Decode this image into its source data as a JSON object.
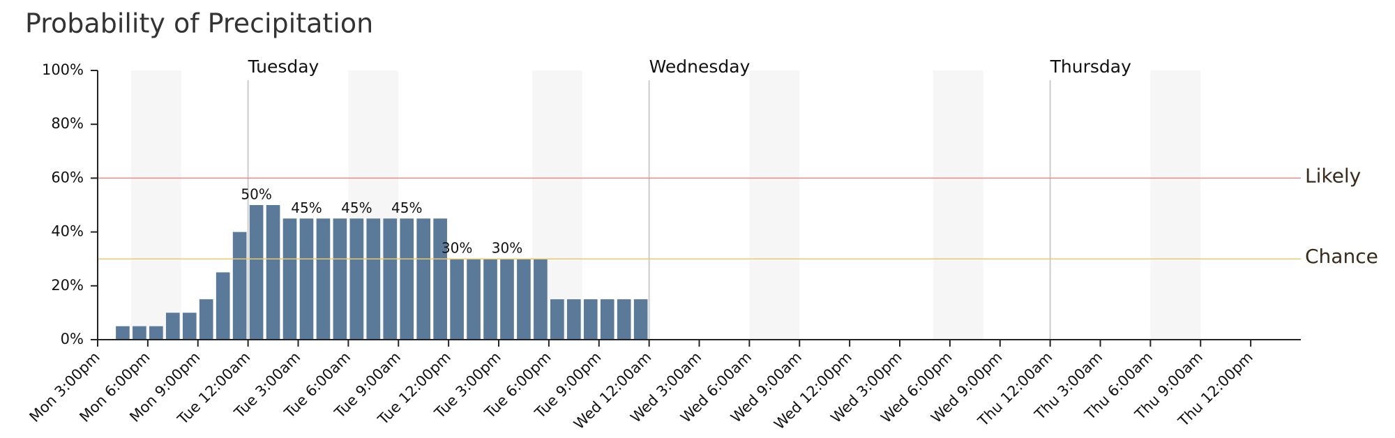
{
  "chart_data": {
    "type": "bar",
    "title": "Probability of Precipitation",
    "categories": [
      "Mon 3:00pm",
      null,
      null,
      "Mon 6:00pm",
      null,
      null,
      "Mon 9:00pm",
      null,
      null,
      "Tue 12:00am",
      null,
      null,
      "Tue 3:00am",
      null,
      null,
      "Tue 6:00am",
      null,
      null,
      "Tue 9:00am",
      null,
      null,
      "Tue 12:00pm",
      null,
      null,
      "Tue 3:00pm",
      null,
      null,
      "Tue 6:00pm",
      null,
      null,
      "Tue 9:00pm",
      null,
      null,
      "Wed 12:00am",
      null,
      null,
      "Wed 3:00am",
      null,
      null,
      "Wed 6:00am",
      null,
      null,
      "Wed 9:00am",
      null,
      null,
      "Wed 12:00pm",
      null,
      null,
      "Wed 3:00pm",
      null,
      null,
      "Wed 6:00pm",
      null,
      null,
      "Wed 9:00pm",
      null,
      null,
      "Thu 12:00am",
      null,
      null,
      "Thu 3:00am",
      null,
      null,
      "Thu 6:00am",
      null,
      null,
      "Thu 9:00am",
      null,
      null,
      "Thu 12:00pm",
      null,
      null
    ],
    "values": [
      0,
      5,
      5,
      5,
      10,
      10,
      15,
      25,
      40,
      50,
      50,
      45,
      45,
      45,
      45,
      45,
      45,
      45,
      45,
      45,
      45,
      30,
      30,
      30,
      30,
      30,
      30,
      15,
      15,
      15,
      15,
      15,
      15,
      0,
      0,
      0,
      0,
      0,
      0,
      0,
      0,
      0,
      0,
      0,
      0,
      0,
      0,
      0,
      0,
      0,
      0,
      0,
      0,
      0,
      0,
      0,
      0,
      0,
      0,
      0,
      0,
      0,
      0,
      0,
      0,
      0,
      0,
      0,
      0,
      0,
      0,
      0
    ],
    "value_labels": [
      null,
      null,
      null,
      null,
      null,
      null,
      null,
      null,
      null,
      "50%",
      null,
      null,
      "45%",
      null,
      null,
      "45%",
      null,
      null,
      "45%",
      null,
      null,
      "30%",
      null,
      null,
      "30%",
      null,
      null,
      null,
      null,
      null,
      null,
      null,
      null,
      null,
      null,
      null,
      null,
      null,
      null,
      null,
      null,
      null,
      null,
      null,
      null,
      null,
      null,
      null,
      null,
      null,
      null,
      null,
      null,
      null,
      null,
      null,
      null,
      null,
      null,
      null,
      null,
      null,
      null,
      null,
      null,
      null,
      null,
      null,
      null,
      null,
      null,
      null
    ],
    "color": "#5b7a99",
    "ylim": [
      0,
      100
    ],
    "yticks": [
      {
        "value": 0,
        "label": "0%"
      },
      {
        "value": 20,
        "label": "20%"
      },
      {
        "value": 40,
        "label": "40%"
      },
      {
        "value": 60,
        "label": "60%"
      },
      {
        "value": 80,
        "label": "80%"
      },
      {
        "value": 100,
        "label": "100%"
      }
    ],
    "thresholds": [
      {
        "label": "Likely",
        "value": 60,
        "color": "#e88a8a"
      },
      {
        "label": "Chance",
        "value": 30,
        "color": "#e8c870"
      }
    ],
    "day_markers": [
      {
        "label": "Tuesday",
        "x": "Tue 12:00am"
      },
      {
        "label": "Wednesday",
        "x": "Wed 12:00am"
      },
      {
        "label": "Thursday",
        "x": "Thu 12:00am"
      }
    ]
  }
}
